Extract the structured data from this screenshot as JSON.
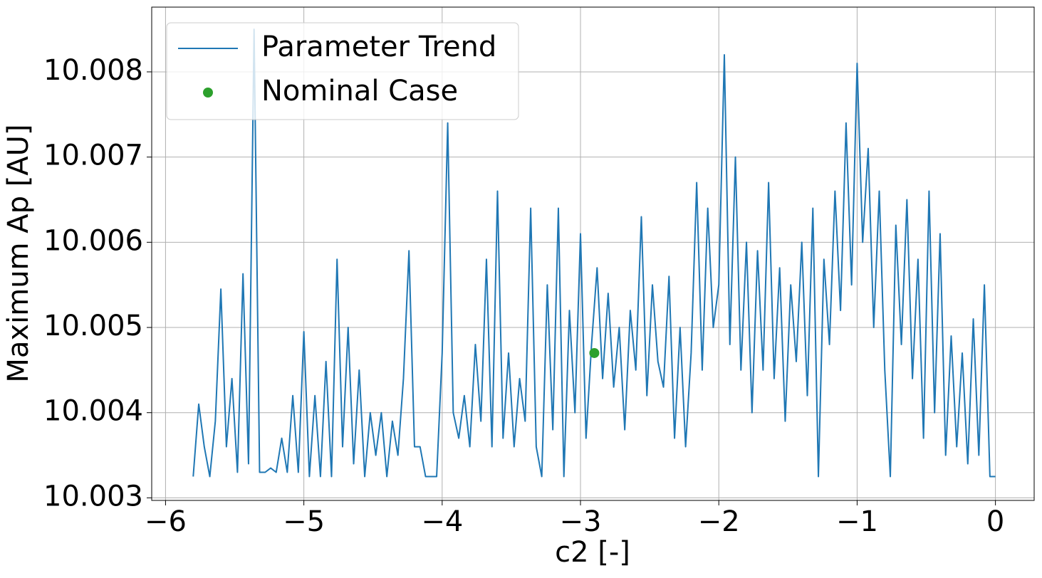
{
  "chart_data": {
    "type": "line",
    "xlabel": "c2 [-]",
    "ylabel": "Maximum Ap [AU]",
    "xlim": [
      -6.1,
      0.28
    ],
    "ylim": [
      10.00297,
      10.00876
    ],
    "xticks": [
      {
        "value": -6,
        "label": "−6"
      },
      {
        "value": -5,
        "label": "−5"
      },
      {
        "value": -4,
        "label": "−4"
      },
      {
        "value": -3,
        "label": "−3"
      },
      {
        "value": -2,
        "label": "−2"
      },
      {
        "value": -1,
        "label": "−1"
      },
      0
    ],
    "yticks": [
      10.003,
      10.004,
      10.005,
      10.006,
      10.007,
      10.008
    ],
    "grid": true,
    "legend": "upper left",
    "series": [
      {
        "name": "Parameter Trend",
        "color": "#1f77b4",
        "mark": "line",
        "x": [
          -5.8,
          -5.76,
          -5.72,
          -5.68,
          -5.64,
          -5.6,
          -5.56,
          -5.52,
          -5.48,
          -5.44,
          -5.4,
          -5.36,
          -5.32,
          -5.28,
          -5.24,
          -5.2,
          -5.16,
          -5.12,
          -5.08,
          -5.04,
          -5.0,
          -4.96,
          -4.92,
          -4.88,
          -4.84,
          -4.8,
          -4.76,
          -4.72,
          -4.68,
          -4.64,
          -4.6,
          -4.56,
          -4.52,
          -4.48,
          -4.44,
          -4.4,
          -4.36,
          -4.32,
          -4.28,
          -4.24,
          -4.2,
          -4.16,
          -4.12,
          -4.08,
          -4.04,
          -4.0,
          -3.96,
          -3.92,
          -3.88,
          -3.84,
          -3.8,
          -3.76,
          -3.72,
          -3.68,
          -3.64,
          -3.6,
          -3.56,
          -3.52,
          -3.48,
          -3.44,
          -3.4,
          -3.36,
          -3.32,
          -3.28,
          -3.24,
          -3.2,
          -3.16,
          -3.12,
          -3.08,
          -3.04,
          -3.0,
          -2.96,
          -2.92,
          -2.88,
          -2.84,
          -2.8,
          -2.76,
          -2.72,
          -2.68,
          -2.64,
          -2.6,
          -2.56,
          -2.52,
          -2.48,
          -2.44,
          -2.4,
          -2.36,
          -2.32,
          -2.28,
          -2.24,
          -2.2,
          -2.16,
          -2.12,
          -2.08,
          -2.04,
          -2.0,
          -1.96,
          -1.92,
          -1.88,
          -1.84,
          -1.8,
          -1.76,
          -1.72,
          -1.68,
          -1.64,
          -1.6,
          -1.56,
          -1.52,
          -1.48,
          -1.44,
          -1.4,
          -1.36,
          -1.32,
          -1.28,
          -1.24,
          -1.2,
          -1.16,
          -1.12,
          -1.08,
          -1.04,
          -1.0,
          -0.96,
          -0.92,
          -0.88,
          -0.84,
          -0.8,
          -0.76,
          -0.72,
          -0.68,
          -0.64,
          -0.6,
          -0.56,
          -0.52,
          -0.48,
          -0.44,
          -0.4,
          -0.36,
          -0.32,
          -0.28,
          -0.24,
          -0.2,
          -0.16,
          -0.12,
          -0.08,
          -0.04,
          0.0
        ],
        "values": [
          10.00325,
          10.0041,
          10.0036,
          10.00325,
          10.0039,
          10.00545,
          10.0036,
          10.0044,
          10.0033,
          10.00563,
          10.0034,
          10.0085,
          10.0033,
          10.0033,
          10.00335,
          10.0033,
          10.0037,
          10.0033,
          10.0042,
          10.0033,
          10.00495,
          10.00325,
          10.0042,
          10.00325,
          10.0046,
          10.00325,
          10.0058,
          10.0036,
          10.005,
          10.0034,
          10.0045,
          10.00325,
          10.004,
          10.0035,
          10.004,
          10.00325,
          10.0039,
          10.0035,
          10.0044,
          10.0059,
          10.0036,
          10.0036,
          10.00325,
          10.00325,
          10.00325,
          10.0047,
          10.0074,
          10.004,
          10.0037,
          10.0042,
          10.0036,
          10.0048,
          10.0039,
          10.0058,
          10.0036,
          10.0066,
          10.0037,
          10.0047,
          10.0036,
          10.0044,
          10.0039,
          10.0064,
          10.0036,
          10.00325,
          10.0055,
          10.0038,
          10.0064,
          10.00325,
          10.0052,
          10.004,
          10.0061,
          10.0037,
          10.0048,
          10.0057,
          10.0044,
          10.0054,
          10.0043,
          10.005,
          10.0038,
          10.0052,
          10.0045,
          10.0063,
          10.0042,
          10.0055,
          10.0046,
          10.0043,
          10.0056,
          10.0037,
          10.005,
          10.0036,
          10.0047,
          10.0067,
          10.0045,
          10.0064,
          10.005,
          10.0055,
          10.0082,
          10.0048,
          10.007,
          10.0045,
          10.006,
          10.004,
          10.0059,
          10.0045,
          10.0067,
          10.0044,
          10.0057,
          10.0039,
          10.0055,
          10.0046,
          10.006,
          10.0042,
          10.0064,
          10.00325,
          10.0058,
          10.0048,
          10.0066,
          10.0052,
          10.0074,
          10.0055,
          10.0081,
          10.006,
          10.0071,
          10.005,
          10.0066,
          10.0045,
          10.00325,
          10.0062,
          10.0048,
          10.0065,
          10.0044,
          10.0058,
          10.0037,
          10.0066,
          10.004,
          10.0061,
          10.0035,
          10.0049,
          10.0036,
          10.0047,
          10.0034,
          10.0051,
          10.0035,
          10.0055,
          10.00325,
          10.00325
        ]
      },
      {
        "name": "Nominal Case",
        "color": "#2ca02c",
        "mark": "point",
        "x": [
          -2.9
        ],
        "values": [
          10.0047
        ]
      }
    ]
  }
}
